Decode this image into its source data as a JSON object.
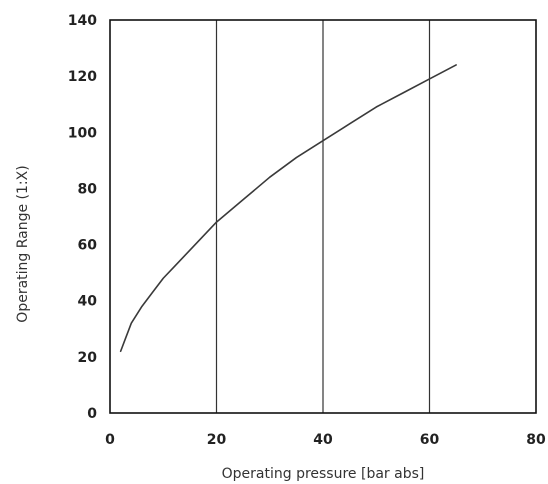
{
  "chart_data": {
    "type": "line",
    "title": "",
    "xlabel": "Operating pressure [bar abs]",
    "ylabel": "Operating Range (1:X)",
    "xlim": [
      0,
      80
    ],
    "ylim": [
      0,
      140
    ],
    "xticks": [
      0,
      20,
      40,
      60,
      80
    ],
    "yticks": [
      0,
      20,
      40,
      60,
      80,
      100,
      120,
      140
    ],
    "xtick_labels": [
      "0",
      "20",
      "40",
      "60",
      "80"
    ],
    "ytick_labels": [
      "0",
      "20",
      "40",
      "60",
      "80",
      "100",
      "120",
      "140"
    ],
    "grid": "vertical",
    "series": [
      {
        "x": [
          2,
          3,
          4,
          6,
          8,
          10,
          12,
          15,
          20,
          25,
          30,
          35,
          40,
          45,
          50,
          55,
          60,
          65
        ],
        "y": [
          22,
          27,
          32,
          38,
          43,
          48,
          52,
          58,
          68,
          76,
          84,
          91,
          97,
          103,
          109,
          114,
          119,
          124
        ]
      }
    ],
    "colors": {
      "line": "#3a3a3a",
      "axis": "#111111",
      "grid": "#333333"
    }
  }
}
